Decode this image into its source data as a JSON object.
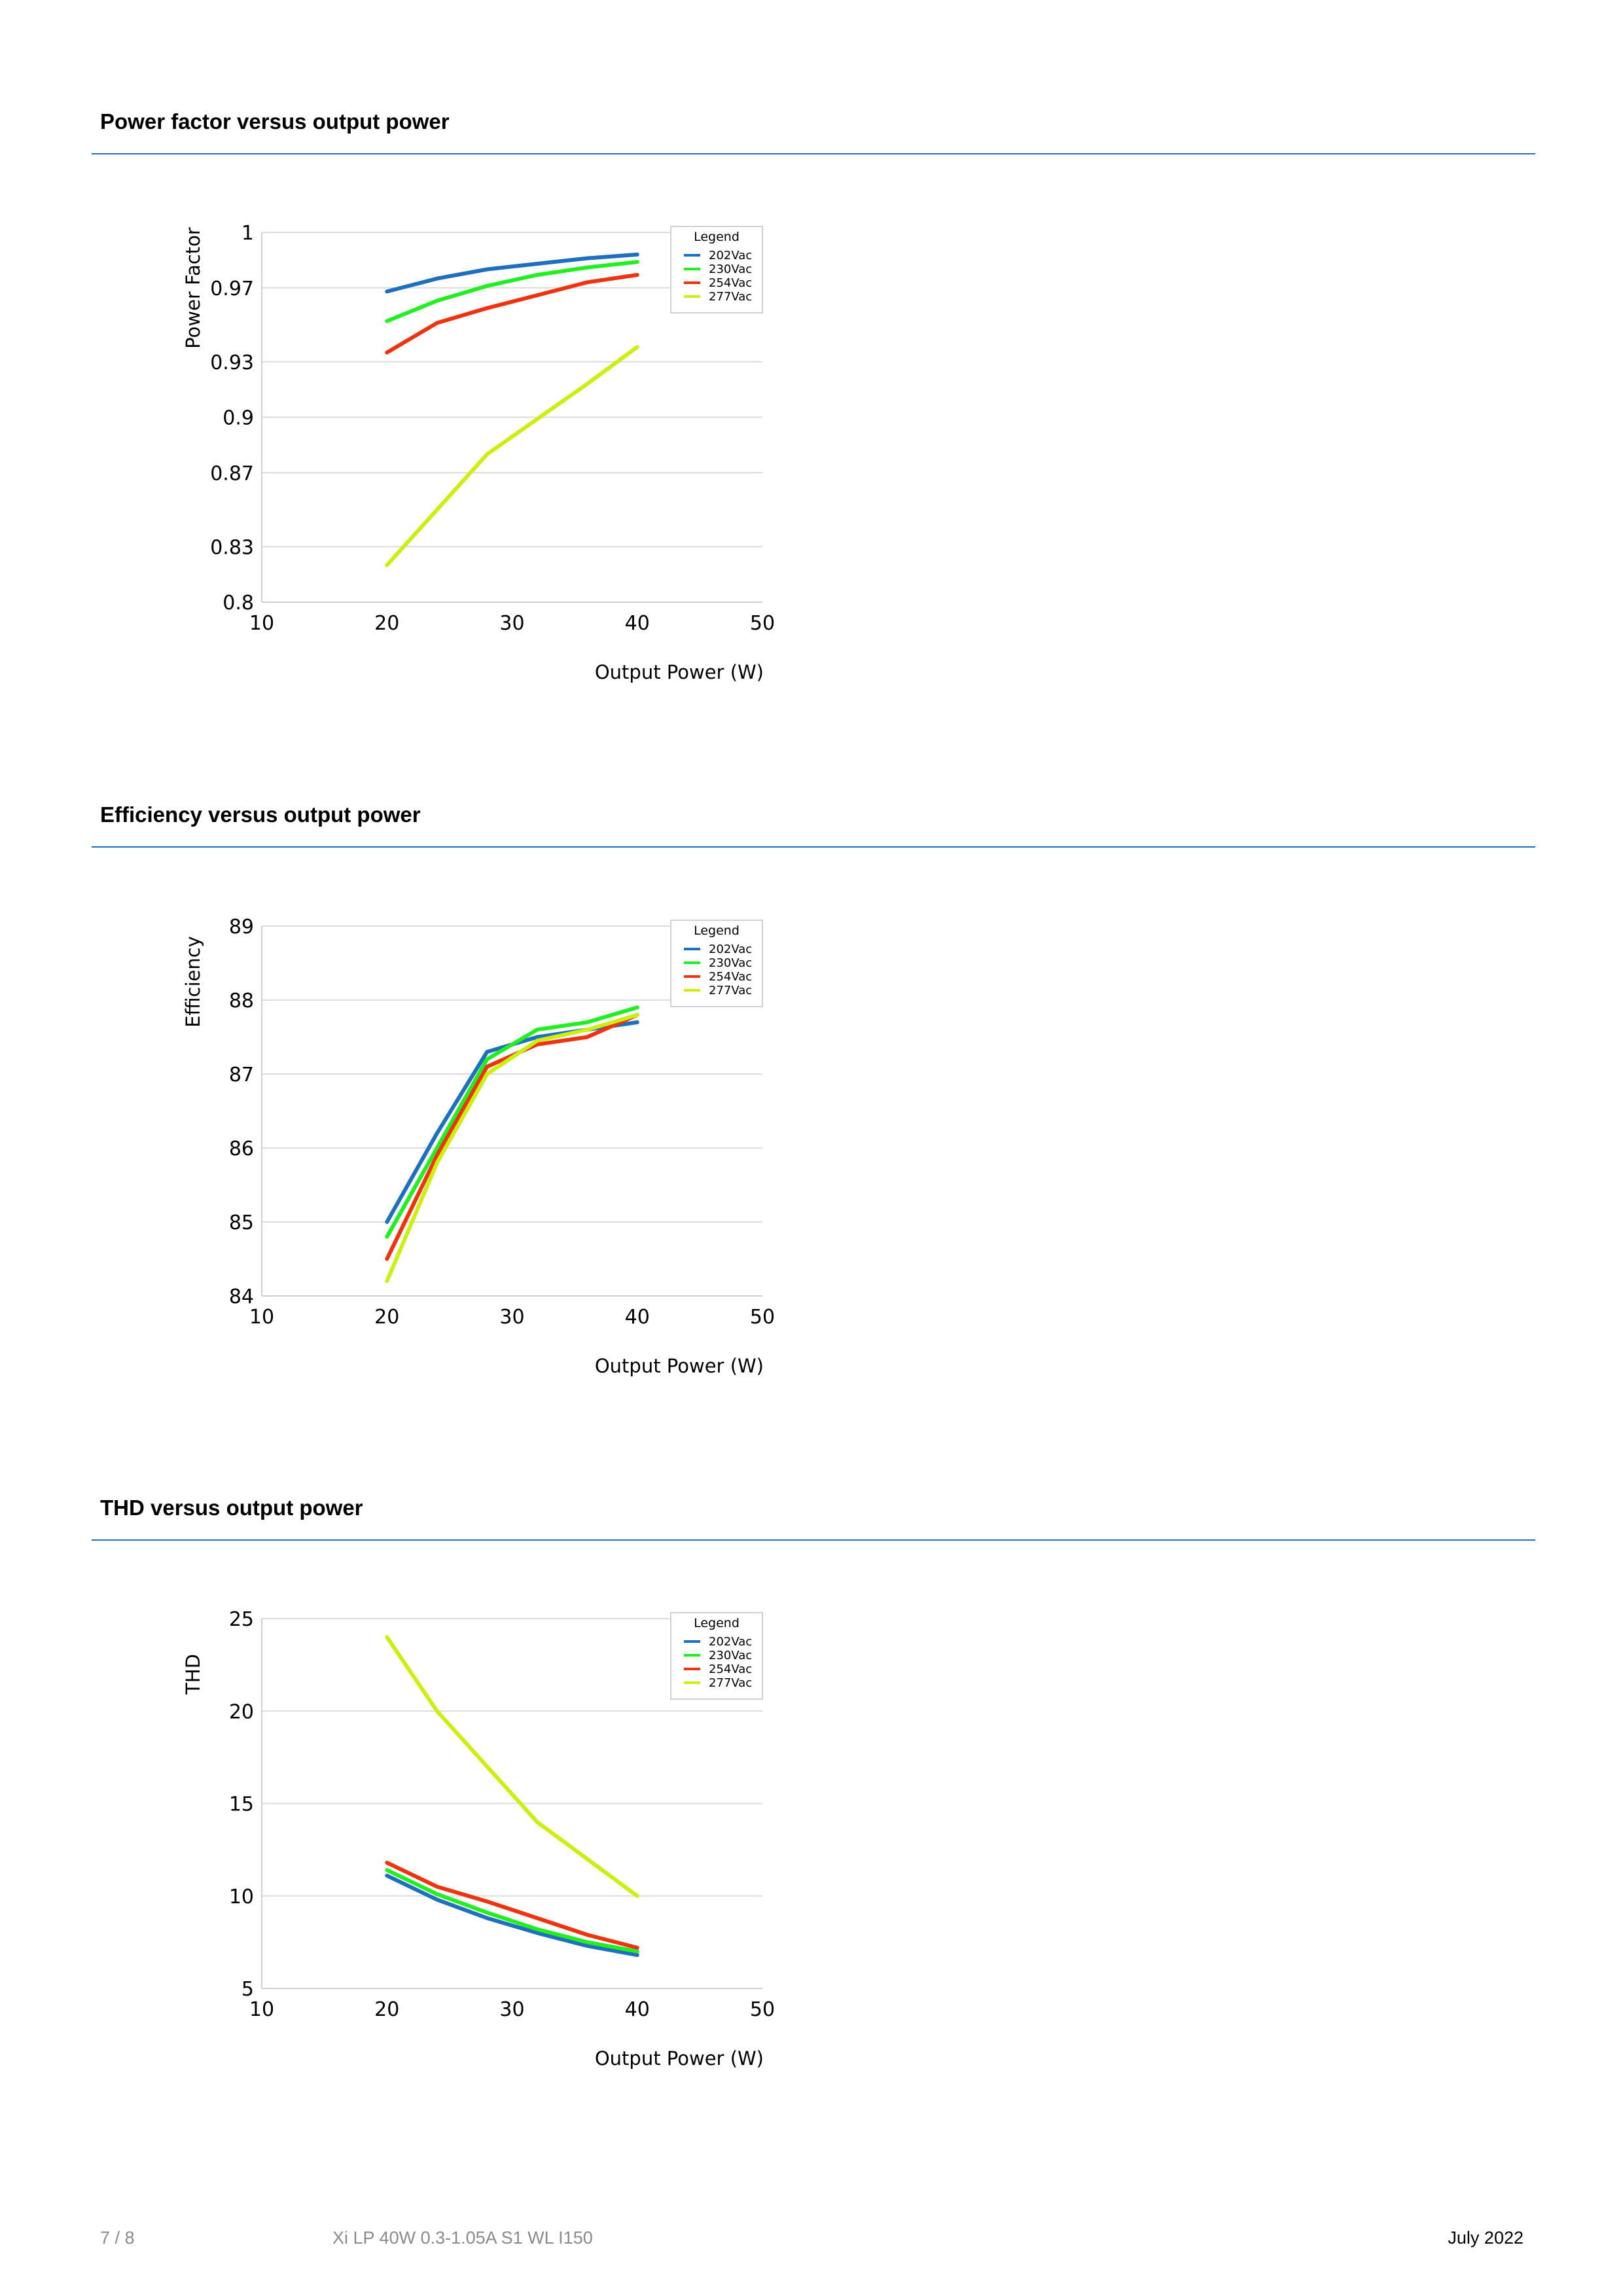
{
  "sections": [
    {
      "title": "Power factor versus output power",
      "chart_data": {
        "type": "line",
        "xlabel": "Output Power (W)",
        "ylabel": "Power Factor",
        "xlim": [
          10,
          50
        ],
        "ylim": [
          0.8,
          1
        ],
        "xticks": [
          10,
          20,
          30,
          40,
          50
        ],
        "xtick_labels": [
          "10",
          "20",
          "30",
          "40",
          "50"
        ],
        "yticks": [
          0.8,
          0.83,
          0.87,
          0.9,
          0.93,
          0.97,
          1
        ],
        "ytick_labels": [
          "0.8",
          "0.83",
          "0.87",
          "0.9",
          "0.93",
          "0.97",
          "1"
        ],
        "grid": true,
        "legend": {
          "title": "Legend",
          "position": "top-right"
        },
        "series": [
          {
            "name": "202Vac",
            "color": "#1f6fbf",
            "x": [
              20,
              24,
              28,
              32,
              36,
              40
            ],
            "y": [
              0.968,
              0.975,
              0.98,
              0.983,
              0.986,
              0.988
            ]
          },
          {
            "name": "230Vac",
            "color": "#22ee22",
            "x": [
              20,
              24,
              28,
              32,
              36,
              40
            ],
            "y": [
              0.952,
              0.963,
              0.971,
              0.977,
              0.981,
              0.984
            ]
          },
          {
            "name": "254Vac",
            "color": "#ee3311",
            "x": [
              20,
              24,
              28,
              32,
              36,
              40
            ],
            "y": [
              0.935,
              0.951,
              0.959,
              0.966,
              0.973,
              0.977
            ]
          },
          {
            "name": "277Vac",
            "color": "#ccee11",
            "x": [
              20,
              24,
              28,
              32,
              36,
              40
            ],
            "y": [
              0.82,
              0.85,
              0.88,
              0.899,
              0.918,
              0.938
            ]
          }
        ]
      }
    },
    {
      "title": "Efficiency versus output power",
      "chart_data": {
        "type": "line",
        "xlabel": "Output Power (W)",
        "ylabel": "Efficiency",
        "xlim": [
          10,
          50
        ],
        "ylim": [
          84,
          89
        ],
        "xticks": [
          10,
          20,
          30,
          40,
          50
        ],
        "xtick_labels": [
          "10",
          "20",
          "30",
          "40",
          "50"
        ],
        "yticks": [
          84,
          85,
          86,
          87,
          88,
          89
        ],
        "ytick_labels": [
          "84",
          "85",
          "86",
          "87",
          "88",
          "89"
        ],
        "grid": true,
        "legend": {
          "title": "Legend",
          "position": "top-right"
        },
        "series": [
          {
            "name": "202Vac",
            "color": "#1f6fbf",
            "x": [
              20,
              24,
              28,
              32,
              36,
              40
            ],
            "y": [
              85.0,
              86.2,
              87.3,
              87.5,
              87.6,
              87.7
            ]
          },
          {
            "name": "230Vac",
            "color": "#22ee22",
            "x": [
              20,
              24,
              28,
              32,
              36,
              40
            ],
            "y": [
              84.8,
              86.0,
              87.2,
              87.6,
              87.7,
              87.9
            ]
          },
          {
            "name": "254Vac",
            "color": "#ee3311",
            "x": [
              20,
              24,
              28,
              32,
              36,
              40
            ],
            "y": [
              84.5,
              85.9,
              87.1,
              87.4,
              87.5,
              87.8
            ]
          },
          {
            "name": "277Vac",
            "color": "#ccee11",
            "x": [
              20,
              24,
              28,
              32,
              36,
              40
            ],
            "y": [
              84.2,
              85.8,
              87.0,
              87.45,
              87.6,
              87.8
            ]
          }
        ]
      }
    },
    {
      "title": "THD versus output power",
      "chart_data": {
        "type": "line",
        "xlabel": "Output Power (W)",
        "ylabel": "THD",
        "xlim": [
          10,
          50
        ],
        "ylim": [
          5,
          25
        ],
        "xticks": [
          10,
          20,
          30,
          40,
          50
        ],
        "xtick_labels": [
          "10",
          "20",
          "30",
          "40",
          "50"
        ],
        "yticks": [
          5,
          10,
          15,
          20,
          25
        ],
        "ytick_labels": [
          "5",
          "10",
          "15",
          "20",
          "25"
        ],
        "grid": true,
        "legend": {
          "title": "Legend",
          "position": "top-right"
        },
        "series": [
          {
            "name": "202Vac",
            "color": "#1f6fbf",
            "x": [
              20,
              24,
              28,
              32,
              36,
              40
            ],
            "y": [
              11.1,
              9.8,
              8.8,
              8.0,
              7.3,
              6.8
            ]
          },
          {
            "name": "230Vac",
            "color": "#22ee22",
            "x": [
              20,
              24,
              28,
              32,
              36,
              40
            ],
            "y": [
              11.4,
              10.1,
              9.1,
              8.2,
              7.5,
              7.0
            ]
          },
          {
            "name": "254Vac",
            "color": "#ee3311",
            "x": [
              20,
              24,
              28,
              32,
              36,
              40
            ],
            "y": [
              11.8,
              10.5,
              9.7,
              8.8,
              7.9,
              7.2
            ]
          },
          {
            "name": "277Vac",
            "color": "#ccee11",
            "x": [
              20,
              24,
              28,
              32,
              36,
              40
            ],
            "y": [
              24.0,
              20.0,
              17.0,
              14.0,
              12.0,
              10.0
            ]
          }
        ]
      }
    }
  ],
  "footer": {
    "page": "7 / 8",
    "product": "Xi LP 40W 0.3-1.05A S1 WL I150",
    "date": "July 2022"
  }
}
